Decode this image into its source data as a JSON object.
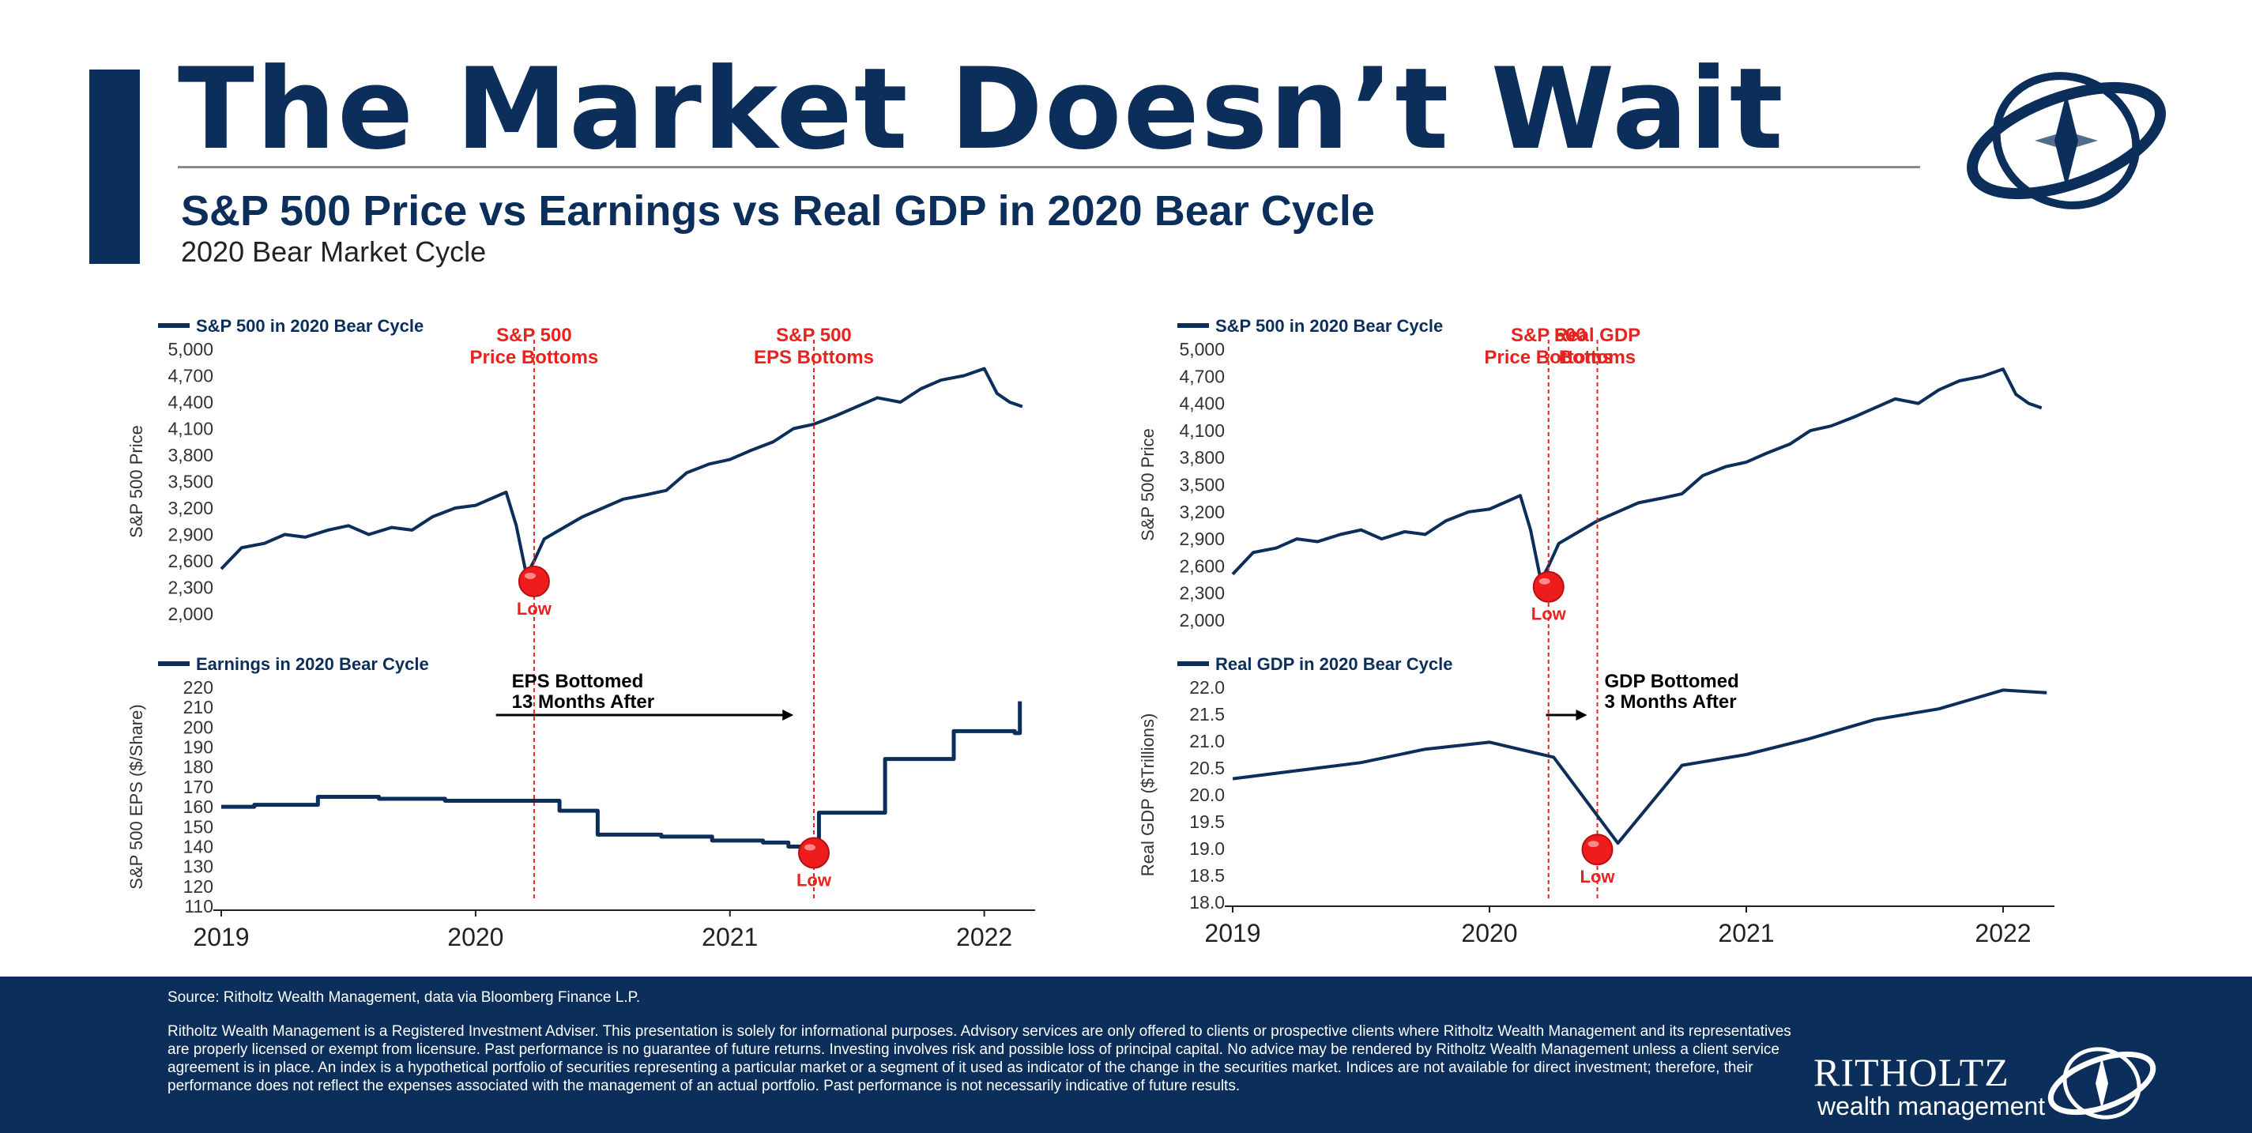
{
  "header": {
    "title": "The Market Doesn’t Wait",
    "subtitle": "S&P 500 Price vs Earnings vs Real GDP in 2020 Bear Cycle",
    "subtitle2": "2020 Bear Market Cycle"
  },
  "footer": {
    "source": "Source: Ritholtz Wealth Management, data via Bloomberg Finance L.P.",
    "disclaimer": "Ritholtz Wealth Management is a Registered Investment Adviser. This presentation is solely for informational purposes. Advisory services are only offered to clients or prospective clients where Ritholtz Wealth Management and its representatives are properly licensed or exempt from licensure. Past performance is no guarantee of future returns. Investing involves risk and possible loss of principal capital. No advice may be rendered by Ritholtz Wealth Management unless a client service agreement is in place. An index is a hypothetical portfolio of securities representing a particular market or a segment of it used as indicator of the change in the securities market. Indices are not available for direct investment; therefore, their performance does not reflect the expenses associated with the management of an actual portfolio. Past performance is not necessarily indicative of future results.",
    "brand": "RITHOLTZ",
    "brand_sub": "wealth management"
  },
  "colors": {
    "navy": "#0b2e5a",
    "red": "#e8231f",
    "marker": "#ee1c1c"
  },
  "chart_data": [
    {
      "type": "line",
      "title": "S&P 500 in 2020 Bear Cycle",
      "ylabel": "S&P 500 Price",
      "ylim": [
        2000,
        5000
      ],
      "yticks": [
        "2,000",
        "2,300",
        "2,600",
        "2,900",
        "3,200",
        "3,500",
        "3,800",
        "4,100",
        "4,400",
        "4,700",
        "5,000"
      ],
      "x": [
        2019.0,
        2019.08,
        2019.17,
        2019.25,
        2019.33,
        2019.42,
        2019.5,
        2019.58,
        2019.67,
        2019.75,
        2019.83,
        2019.92,
        2020.0,
        2020.08,
        2020.12,
        2020.16,
        2020.2,
        2020.23,
        2020.27,
        2020.33,
        2020.42,
        2020.5,
        2020.58,
        2020.67,
        2020.75,
        2020.83,
        2020.92,
        2021.0,
        2021.08,
        2021.17,
        2021.25,
        2021.33,
        2021.42,
        2021.5,
        2021.58,
        2021.67,
        2021.75,
        2021.83,
        2021.92,
        2022.0,
        2022.05,
        2022.1,
        2022.15
      ],
      "y": [
        2510,
        2750,
        2800,
        2900,
        2870,
        2950,
        3000,
        2900,
        2980,
        2950,
        3100,
        3200,
        3230,
        3330,
        3380,
        3000,
        2440,
        2600,
        2850,
        2950,
        3100,
        3200,
        3300,
        3350,
        3400,
        3600,
        3700,
        3750,
        3850,
        3950,
        4100,
        4150,
        4250,
        4350,
        4450,
        4400,
        4550,
        4650,
        4700,
        4780,
        4500,
        4400,
        4350
      ],
      "annotations": [
        {
          "label": "S&P 500 Price Bottoms",
          "x": 2020.23
        },
        {
          "label": "S&P 500 EPS Bottoms",
          "x": 2021.33
        }
      ],
      "marker": {
        "label": "Low",
        "x": 2020.23,
        "y": 2440
      }
    },
    {
      "type": "line",
      "title": "Earnings in 2020 Bear Cycle",
      "ylabel": "S&P 500 EPS ($/Share)",
      "ylim": [
        110,
        220
      ],
      "yticks": [
        "110",
        "120",
        "130",
        "140",
        "150",
        "160",
        "170",
        "180",
        "190",
        "200",
        "210",
        "220"
      ],
      "xticks": [
        "2019",
        "2020",
        "2021",
        "2022"
      ],
      "step": true,
      "x": [
        2019.0,
        2019.1,
        2019.13,
        2019.35,
        2019.38,
        2019.6,
        2019.62,
        2019.85,
        2019.88,
        2020.3,
        2020.33,
        2020.45,
        2020.48,
        2020.7,
        2020.73,
        2020.9,
        2020.93,
        2021.1,
        2021.13,
        2021.2,
        2021.23,
        2021.33,
        2021.35,
        2021.58,
        2021.61,
        2021.85,
        2021.88,
        2022.08,
        2022.1,
        2022.12,
        2022.14
      ],
      "y": [
        160,
        160,
        161,
        161,
        165,
        165,
        164,
        164,
        163,
        163,
        158,
        158,
        146,
        146,
        145,
        145,
        143,
        143,
        142,
        142,
        140,
        140,
        157,
        157,
        184,
        184,
        198,
        198,
        198,
        197,
        213
      ],
      "annotations": [
        {
          "label": "EPS Bottomed 13 Months After",
          "from_x": 2020.08,
          "to_x": 2021.25
        }
      ],
      "marker": {
        "label": "Low",
        "x": 2021.33,
        "y": 140
      }
    },
    {
      "type": "line",
      "title": "S&P 500 in 2020 Bear Cycle",
      "ylabel": "S&P 500 Price",
      "ylim": [
        2000,
        5000
      ],
      "yticks": [
        "2,000",
        "2,300",
        "2,600",
        "2,900",
        "3,200",
        "3,500",
        "3,800",
        "4,100",
        "4,400",
        "4,700",
        "5,000"
      ],
      "x": [
        2019.0,
        2019.08,
        2019.17,
        2019.25,
        2019.33,
        2019.42,
        2019.5,
        2019.58,
        2019.67,
        2019.75,
        2019.83,
        2019.92,
        2020.0,
        2020.08,
        2020.12,
        2020.16,
        2020.2,
        2020.23,
        2020.27,
        2020.33,
        2020.42,
        2020.5,
        2020.58,
        2020.67,
        2020.75,
        2020.83,
        2020.92,
        2021.0,
        2021.08,
        2021.17,
        2021.25,
        2021.33,
        2021.42,
        2021.5,
        2021.58,
        2021.67,
        2021.75,
        2021.83,
        2021.92,
        2022.0,
        2022.05,
        2022.1,
        2022.15
      ],
      "y": [
        2510,
        2750,
        2800,
        2900,
        2870,
        2950,
        3000,
        2900,
        2980,
        2950,
        3100,
        3200,
        3230,
        3330,
        3380,
        3000,
        2440,
        2600,
        2850,
        2950,
        3100,
        3200,
        3300,
        3350,
        3400,
        3600,
        3700,
        3750,
        3850,
        3950,
        4100,
        4150,
        4250,
        4350,
        4450,
        4400,
        4550,
        4650,
        4700,
        4780,
        4500,
        4400,
        4350
      ],
      "annotations": [
        {
          "label": "S&P 500 Price Bottoms",
          "x": 2020.23
        },
        {
          "label": "Real GDP Bottoms",
          "x": 2020.42
        }
      ],
      "marker": {
        "label": "Low",
        "x": 2020.23,
        "y": 2440
      }
    },
    {
      "type": "line",
      "title": "Real GDP in 2020 Bear Cycle",
      "ylabel": "Real GDP ($Trillions)",
      "ylim": [
        18.0,
        22.0
      ],
      "yticks": [
        "18.0",
        "18.5",
        "19.0",
        "19.5",
        "20.0",
        "20.5",
        "21.0",
        "21.5",
        "22.0"
      ],
      "xticks": [
        "2019",
        "2020",
        "2021",
        "2022"
      ],
      "x": [
        2019.0,
        2019.25,
        2019.5,
        2019.75,
        2020.0,
        2020.25,
        2020.5,
        2020.75,
        2021.0,
        2021.25,
        2021.5,
        2021.75,
        2022.0,
        2022.17
      ],
      "y": [
        20.3,
        20.45,
        20.6,
        20.85,
        20.98,
        20.7,
        19.1,
        20.55,
        20.75,
        21.05,
        21.4,
        21.6,
        21.95,
        21.9
      ],
      "annotations": [
        {
          "label": "GDP Bottomed 3 Months After",
          "from_x": 2020.22,
          "to_x": 2020.38
        }
      ],
      "marker": {
        "label": "Low",
        "x": 2020.42,
        "y": 19.1
      }
    }
  ]
}
